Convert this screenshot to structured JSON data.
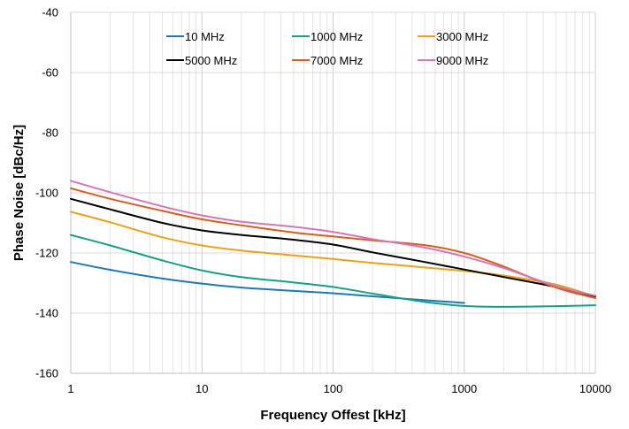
{
  "chart_data": {
    "type": "line",
    "title": "",
    "xlabel": "Frequency Offest [kHz]",
    "ylabel": "Phase Noise [dBc/Hz]",
    "x_scale": "log",
    "xlim": [
      1,
      10000
    ],
    "ylim": [
      -160,
      -40
    ],
    "x_ticks": [
      "1",
      "10",
      "100",
      "1000",
      "10000"
    ],
    "y_ticks": [
      "-40",
      "-60",
      "-80",
      "-100",
      "-120",
      "-140",
      "-160"
    ],
    "grid": "on (major and minor log gridlines)",
    "legend_position": "top",
    "series": [
      {
        "name": "10 MHz",
        "color": "#1f77b4",
        "x": [
          1,
          2,
          5,
          10,
          20,
          50,
          100,
          200,
          500,
          1000
        ],
        "y": [
          -123,
          -125.6,
          -128.5,
          -130.2,
          -131.5,
          -132.6,
          -133.4,
          -134.4,
          -135.7,
          -136.6
        ]
      },
      {
        "name": "1000 MHz",
        "color": "#17a085",
        "x": [
          1,
          2,
          5,
          10,
          20,
          50,
          100,
          200,
          500,
          1000,
          2000,
          5000,
          10000
        ],
        "y": [
          -114,
          -117.5,
          -122.5,
          -125.8,
          -128,
          -129.8,
          -131.3,
          -133.5,
          -136.3,
          -137.6,
          -137.9,
          -137.7,
          -137.4
        ]
      },
      {
        "name": "3000 MHz",
        "color": "#e8a317",
        "x": [
          1,
          2,
          5,
          10,
          20,
          50,
          100,
          200,
          500,
          1000,
          2000,
          5000,
          10000
        ],
        "y": [
          -106.3,
          -109.8,
          -114.8,
          -117.5,
          -119.2,
          -120.8,
          -122,
          -123.3,
          -124.8,
          -126,
          -127.5,
          -130.5,
          -134.5
        ]
      },
      {
        "name": "5000 MHz",
        "color": "#000000",
        "x": [
          1,
          2,
          5,
          10,
          20,
          50,
          100,
          200,
          500,
          1000,
          2000,
          5000,
          10000
        ],
        "y": [
          -102,
          -105.5,
          -110,
          -112.5,
          -114,
          -115.6,
          -117.2,
          -119.8,
          -123,
          -125.5,
          -128,
          -131.3,
          -134.4
        ]
      },
      {
        "name": "7000 MHz",
        "color": "#d45f1e",
        "x": [
          1,
          2,
          5,
          10,
          20,
          50,
          100,
          200,
          500,
          1000,
          2000,
          5000,
          10000
        ],
        "y": [
          -98.5,
          -102,
          -106,
          -108.8,
          -110.8,
          -113.2,
          -114.5,
          -115.8,
          -117.4,
          -120,
          -124.5,
          -131.5,
          -135
        ]
      },
      {
        "name": "9000 MHz",
        "color": "#d478b5",
        "x": [
          1,
          2,
          5,
          10,
          20,
          50,
          100,
          200,
          500,
          1000,
          2000,
          5000,
          10000
        ],
        "y": [
          -96,
          -99.8,
          -104.5,
          -107.5,
          -109.6,
          -111.3,
          -113,
          -115.4,
          -118.2,
          -121.2,
          -125,
          -131,
          -134.2
        ]
      }
    ]
  }
}
